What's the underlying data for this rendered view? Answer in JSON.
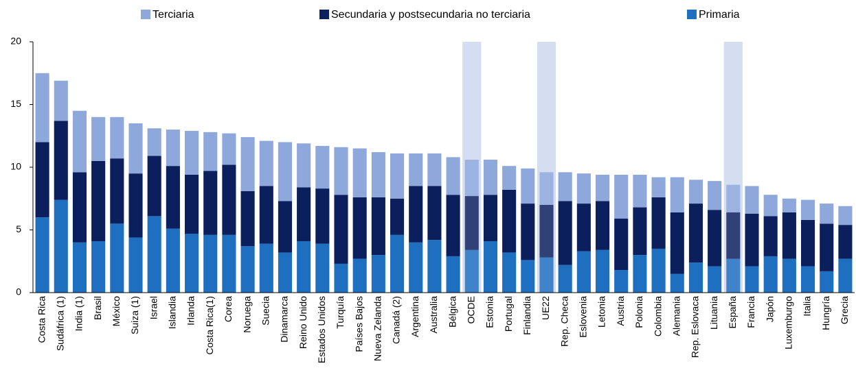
{
  "chart_data": {
    "type": "stacked_bar",
    "categories": [
      "Costa Rica",
      "Sudáfrica (1)",
      "India (1)",
      "Brasil",
      "México",
      "Suiza (1)",
      "Israel",
      "Islandia",
      "Irlanda",
      "Costa Rica(1)",
      "Corea",
      "Noruega",
      "Suecia",
      "Dinamarca",
      "Reino Unido",
      "Estados Unidos",
      "Turquía",
      "Países Bajos",
      "Nueva Zelanda",
      "Canadá (2)",
      "Argentina",
      "Australia",
      "Bélgica",
      "OCDE",
      "Estonia",
      "Portugal",
      "Finlandia",
      "UE22",
      "Rep. Checa",
      "Eslovenia",
      "Letonia",
      "Austria",
      "Polonia",
      "Colombia",
      "Alemania",
      "Rep. Eslovaca",
      "Lituania",
      "España",
      "Francia",
      "Japón",
      "Luxemburgo",
      "Italia",
      "Hungría",
      "Grecia"
    ],
    "series": [
      {
        "name": "Primaria",
        "color": "#1f6fc1",
        "values": [
          6.0,
          7.4,
          4.0,
          4.1,
          5.5,
          4.4,
          6.1,
          5.1,
          4.7,
          4.6,
          4.6,
          3.7,
          3.9,
          3.2,
          4.1,
          3.9,
          2.3,
          2.7,
          3.0,
          4.6,
          4.0,
          4.2,
          2.9,
          3.4,
          4.1,
          3.2,
          2.6,
          2.8,
          2.2,
          3.3,
          3.4,
          1.8,
          3.0,
          3.5,
          1.5,
          2.4,
          2.1,
          2.7,
          2.1,
          2.9,
          2.7,
          2.1,
          1.7,
          2.7
        ]
      },
      {
        "name": "Secundaria y postsecundaria no terciaria",
        "color": "#0b1f5c",
        "values": [
          6.0,
          6.3,
          5.6,
          6.4,
          5.2,
          5.1,
          4.8,
          5.0,
          4.7,
          5.1,
          5.6,
          4.4,
          4.6,
          4.1,
          4.3,
          4.4,
          5.5,
          4.9,
          4.6,
          2.9,
          4.5,
          4.3,
          4.9,
          4.3,
          3.7,
          5.0,
          4.5,
          4.2,
          5.1,
          3.8,
          3.9,
          4.1,
          3.8,
          4.1,
          4.9,
          4.7,
          4.5,
          3.7,
          4.2,
          3.2,
          3.7,
          3.7,
          3.8,
          2.7
        ]
      },
      {
        "name": "Terciaria",
        "color": "#8fa8dc",
        "values": [
          5.5,
          3.2,
          4.9,
          3.5,
          3.3,
          4.0,
          2.2,
          2.9,
          3.5,
          3.1,
          2.5,
          4.3,
          3.6,
          4.7,
          3.5,
          3.4,
          3.8,
          3.9,
          3.6,
          3.6,
          2.6,
          2.6,
          3.0,
          2.9,
          2.8,
          1.9,
          2.8,
          2.6,
          2.3,
          2.4,
          2.1,
          3.5,
          2.6,
          1.6,
          2.8,
          1.9,
          2.3,
          2.2,
          2.2,
          1.7,
          1.1,
          1.6,
          1.6,
          1.5
        ]
      }
    ],
    "highlight": [
      23,
      27,
      37
    ],
    "ylim": [
      0,
      20
    ],
    "yticks": [
      0,
      5,
      10,
      15,
      20
    ]
  }
}
